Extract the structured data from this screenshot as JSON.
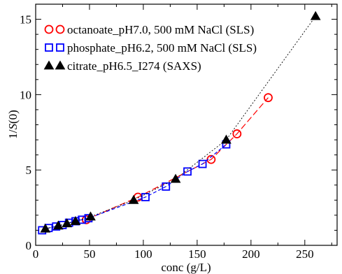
{
  "chart_data": {
    "type": "scatter",
    "title": "",
    "xlabel": "conc (g/L)",
    "ylabel_prefix": "1/",
    "ylabel_var": "S",
    "ylabel_suffix": "(0)",
    "xlim": [
      0,
      280
    ],
    "ylim": [
      0,
      16
    ],
    "xticks": [
      0,
      50,
      100,
      150,
      200,
      250
    ],
    "yticks": [
      0,
      5,
      10,
      15
    ],
    "legend_position": "top-left",
    "grid": false,
    "series": [
      {
        "name": "octanoate_pH7.0, 500 mM NaCl (SLS)",
        "marker": "circle",
        "color": "#ff0000",
        "line_style": "long-dash",
        "x": [
          47,
          95,
          163,
          187,
          216
        ],
        "y": [
          1.7,
          3.2,
          5.7,
          7.4,
          9.8
        ]
      },
      {
        "name": "phosphate_pH6.2, 500 mM NaCl (SLS)",
        "marker": "square",
        "color": "#0000ff",
        "line_style": "dash",
        "x": [
          6,
          12,
          19,
          25,
          31,
          37,
          43,
          49,
          102,
          121,
          141,
          155,
          177
        ],
        "y": [
          1.0,
          1.15,
          1.25,
          1.35,
          1.5,
          1.6,
          1.7,
          1.8,
          3.2,
          3.9,
          4.9,
          5.4,
          6.7
        ]
      },
      {
        "name": "citrate_pH6.5_I274 (SAXS)",
        "marker": "triangle",
        "color": "#000000",
        "line_style": "dot",
        "x": [
          9,
          21,
          29,
          37,
          51,
          91,
          130,
          177,
          260
        ],
        "y": [
          1.1,
          1.3,
          1.45,
          1.6,
          1.9,
          3.0,
          4.4,
          7.0,
          15.2
        ]
      }
    ]
  }
}
